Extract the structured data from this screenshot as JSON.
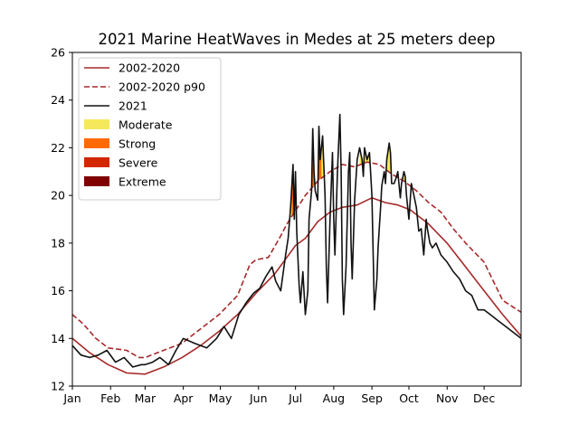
{
  "chart_data": {
    "type": "line",
    "title": "2021 Marine HeatWaves in Medes at 25 meters deep",
    "xlabel": "",
    "ylabel": "",
    "ylim": [
      12,
      26
    ],
    "yticks": [
      12,
      14,
      16,
      18,
      20,
      22,
      24,
      26
    ],
    "xlim_day": [
      1,
      365
    ],
    "x_ticks": [
      {
        "label": "Jan",
        "day": 1
      },
      {
        "label": "Feb",
        "day": 32
      },
      {
        "label": "Mar",
        "day": 60
      },
      {
        "label": "Apr",
        "day": 91
      },
      {
        "label": "May",
        "day": 121
      },
      {
        "label": "Jun",
        "day": 152
      },
      {
        "label": "Jul",
        "day": 182
      },
      {
        "label": "Aug",
        "day": 213
      },
      {
        "label": "Sep",
        "day": 244
      },
      {
        "label": "Oct",
        "day": 274
      },
      {
        "label": "Nov",
        "day": 305
      },
      {
        "label": "Dec",
        "day": 335
      }
    ],
    "legend_placement": "top-left",
    "grid": false,
    "series": [
      {
        "name": "2002-2020",
        "style": "solid",
        "color": "#a52a2a",
        "points": [
          [
            1,
            14.0
          ],
          [
            15,
            13.4
          ],
          [
            30,
            12.9
          ],
          [
            45,
            12.55
          ],
          [
            60,
            12.5
          ],
          [
            75,
            12.8
          ],
          [
            90,
            13.2
          ],
          [
            105,
            13.7
          ],
          [
            120,
            14.3
          ],
          [
            135,
            15.0
          ],
          [
            150,
            15.9
          ],
          [
            165,
            16.7
          ],
          [
            175,
            17.4
          ],
          [
            182,
            17.9
          ],
          [
            190,
            18.2
          ],
          [
            200,
            18.9
          ],
          [
            210,
            19.3
          ],
          [
            220,
            19.5
          ],
          [
            232,
            19.6
          ],
          [
            244,
            19.9
          ],
          [
            255,
            19.7
          ],
          [
            265,
            19.6
          ],
          [
            275,
            19.4
          ],
          [
            290,
            18.8
          ],
          [
            305,
            18.0
          ],
          [
            320,
            17.0
          ],
          [
            335,
            16.0
          ],
          [
            350,
            15.0
          ],
          [
            365,
            14.1
          ]
        ]
      },
      {
        "name": "2002-2020 p90",
        "style": "dashed",
        "color": "#a52a2a",
        "points": [
          [
            1,
            15.0
          ],
          [
            10,
            14.6
          ],
          [
            20,
            14.0
          ],
          [
            30,
            13.6
          ],
          [
            45,
            13.5
          ],
          [
            55,
            13.2
          ],
          [
            60,
            13.2
          ],
          [
            75,
            13.5
          ],
          [
            90,
            13.8
          ],
          [
            105,
            14.4
          ],
          [
            120,
            15.0
          ],
          [
            135,
            15.8
          ],
          [
            145,
            17.1
          ],
          [
            150,
            17.3
          ],
          [
            160,
            17.4
          ],
          [
            170,
            18.3
          ],
          [
            175,
            18.8
          ],
          [
            180,
            19.2
          ],
          [
            190,
            20.0
          ],
          [
            200,
            20.6
          ],
          [
            210,
            21.0
          ],
          [
            220,
            21.3
          ],
          [
            230,
            21.2
          ],
          [
            240,
            21.4
          ],
          [
            250,
            21.3
          ],
          [
            260,
            20.9
          ],
          [
            270,
            20.6
          ],
          [
            280,
            20.2
          ],
          [
            290,
            19.7
          ],
          [
            300,
            19.3
          ],
          [
            310,
            18.6
          ],
          [
            320,
            18.0
          ],
          [
            335,
            17.2
          ],
          [
            350,
            15.6
          ],
          [
            365,
            15.1
          ]
        ]
      },
      {
        "name": "2021",
        "style": "solid",
        "color": "#111111",
        "points": [
          [
            1,
            13.7
          ],
          [
            8,
            13.3
          ],
          [
            15,
            13.2
          ],
          [
            22,
            13.3
          ],
          [
            29,
            13.5
          ],
          [
            36,
            13.0
          ],
          [
            43,
            13.2
          ],
          [
            50,
            12.8
          ],
          [
            57,
            12.9
          ],
          [
            60,
            12.9
          ],
          [
            66,
            13.0
          ],
          [
            72,
            13.2
          ],
          [
            79,
            12.9
          ],
          [
            85,
            13.5
          ],
          [
            91,
            14.0
          ],
          [
            100,
            13.8
          ],
          [
            110,
            13.6
          ],
          [
            118,
            14.0
          ],
          [
            124,
            14.5
          ],
          [
            130,
            14.0
          ],
          [
            136,
            15.0
          ],
          [
            142,
            15.5
          ],
          [
            148,
            15.9
          ],
          [
            153,
            16.1
          ],
          [
            158,
            16.6
          ],
          [
            163,
            17.0
          ],
          [
            166,
            16.4
          ],
          [
            170,
            16.0
          ],
          [
            174,
            17.5
          ],
          [
            176,
            18.2
          ],
          [
            178,
            19.5
          ],
          [
            180,
            21.3
          ],
          [
            181,
            19.0
          ],
          [
            182,
            21.0
          ],
          [
            183,
            18.5
          ],
          [
            185,
            16.2
          ],
          [
            186,
            15.5
          ],
          [
            188,
            16.8
          ],
          [
            190,
            15.0
          ],
          [
            192,
            16.0
          ],
          [
            193,
            19.0
          ],
          [
            195,
            20.2
          ],
          [
            196,
            22.8
          ],
          [
            197,
            21.0
          ],
          [
            198,
            20.2
          ],
          [
            200,
            19.8
          ],
          [
            201,
            22.9
          ],
          [
            202,
            21.5
          ],
          [
            204,
            22.5
          ],
          [
            206,
            20.0
          ],
          [
            207,
            17.0
          ],
          [
            208,
            15.5
          ],
          [
            210,
            19.0
          ],
          [
            212,
            21.8
          ],
          [
            213,
            19.0
          ],
          [
            214,
            17.5
          ],
          [
            216,
            21.0
          ],
          [
            218,
            23.4
          ],
          [
            219,
            21.0
          ],
          [
            220,
            16.5
          ],
          [
            221,
            15.0
          ],
          [
            223,
            17.0
          ],
          [
            225,
            21.0
          ],
          [
            226,
            21.8
          ],
          [
            227,
            18.0
          ],
          [
            228,
            16.5
          ],
          [
            230,
            19.8
          ],
          [
            232,
            21.5
          ],
          [
            234,
            22.0
          ],
          [
            236,
            21.5
          ],
          [
            237,
            20.8
          ],
          [
            238,
            22.0
          ],
          [
            240,
            21.5
          ],
          [
            242,
            21.8
          ],
          [
            244,
            20.0
          ],
          [
            246,
            15.2
          ],
          [
            248,
            16.5
          ],
          [
            249,
            17.8
          ],
          [
            251,
            19.5
          ],
          [
            252,
            20.4
          ],
          [
            254,
            21.0
          ],
          [
            255,
            20.5
          ],
          [
            256,
            21.5
          ],
          [
            258,
            22.2
          ],
          [
            259,
            21.8
          ],
          [
            260,
            20.5
          ],
          [
            262,
            20.5
          ],
          [
            264,
            20.8
          ],
          [
            265,
            21.0
          ],
          [
            267,
            19.9
          ],
          [
            268,
            20.5
          ],
          [
            270,
            21.0
          ],
          [
            271,
            20.8
          ],
          [
            272,
            20.0
          ],
          [
            274,
            19.0
          ],
          [
            276,
            20.5
          ],
          [
            278,
            20.0
          ],
          [
            280,
            19.5
          ],
          [
            282,
            18.5
          ],
          [
            284,
            18.6
          ],
          [
            286,
            17.5
          ],
          [
            288,
            19.0
          ],
          [
            289,
            18.6
          ],
          [
            291,
            18.0
          ],
          [
            293,
            17.8
          ],
          [
            296,
            18.0
          ],
          [
            300,
            17.5
          ],
          [
            305,
            17.2
          ],
          [
            310,
            16.8
          ],
          [
            315,
            16.5
          ],
          [
            320,
            16.0
          ],
          [
            325,
            15.8
          ],
          [
            330,
            15.2
          ],
          [
            335,
            15.2
          ],
          [
            340,
            15.0
          ],
          [
            345,
            14.8
          ],
          [
            350,
            14.6
          ],
          [
            355,
            14.4
          ],
          [
            360,
            14.2
          ],
          [
            365,
            14.0
          ]
        ]
      }
    ],
    "heatwave_categories": [
      {
        "name": "Moderate",
        "color": "#f4e95a"
      },
      {
        "name": "Strong",
        "color": "#ff6a00"
      },
      {
        "name": "Severe",
        "color": "#d42700"
      },
      {
        "name": "Extreme",
        "color": "#800000"
      }
    ],
    "heatwave_events": [
      {
        "category": "Moderate",
        "start_day": 178,
        "end_day": 183
      },
      {
        "category": "Strong",
        "start_day": 179,
        "end_day": 181
      },
      {
        "category": "Moderate",
        "start_day": 193,
        "end_day": 206
      },
      {
        "category": "Strong",
        "start_day": 195,
        "end_day": 203
      },
      {
        "category": "Moderate",
        "start_day": 234,
        "end_day": 243
      },
      {
        "category": "Moderate",
        "start_day": 251,
        "end_day": 272
      }
    ]
  }
}
